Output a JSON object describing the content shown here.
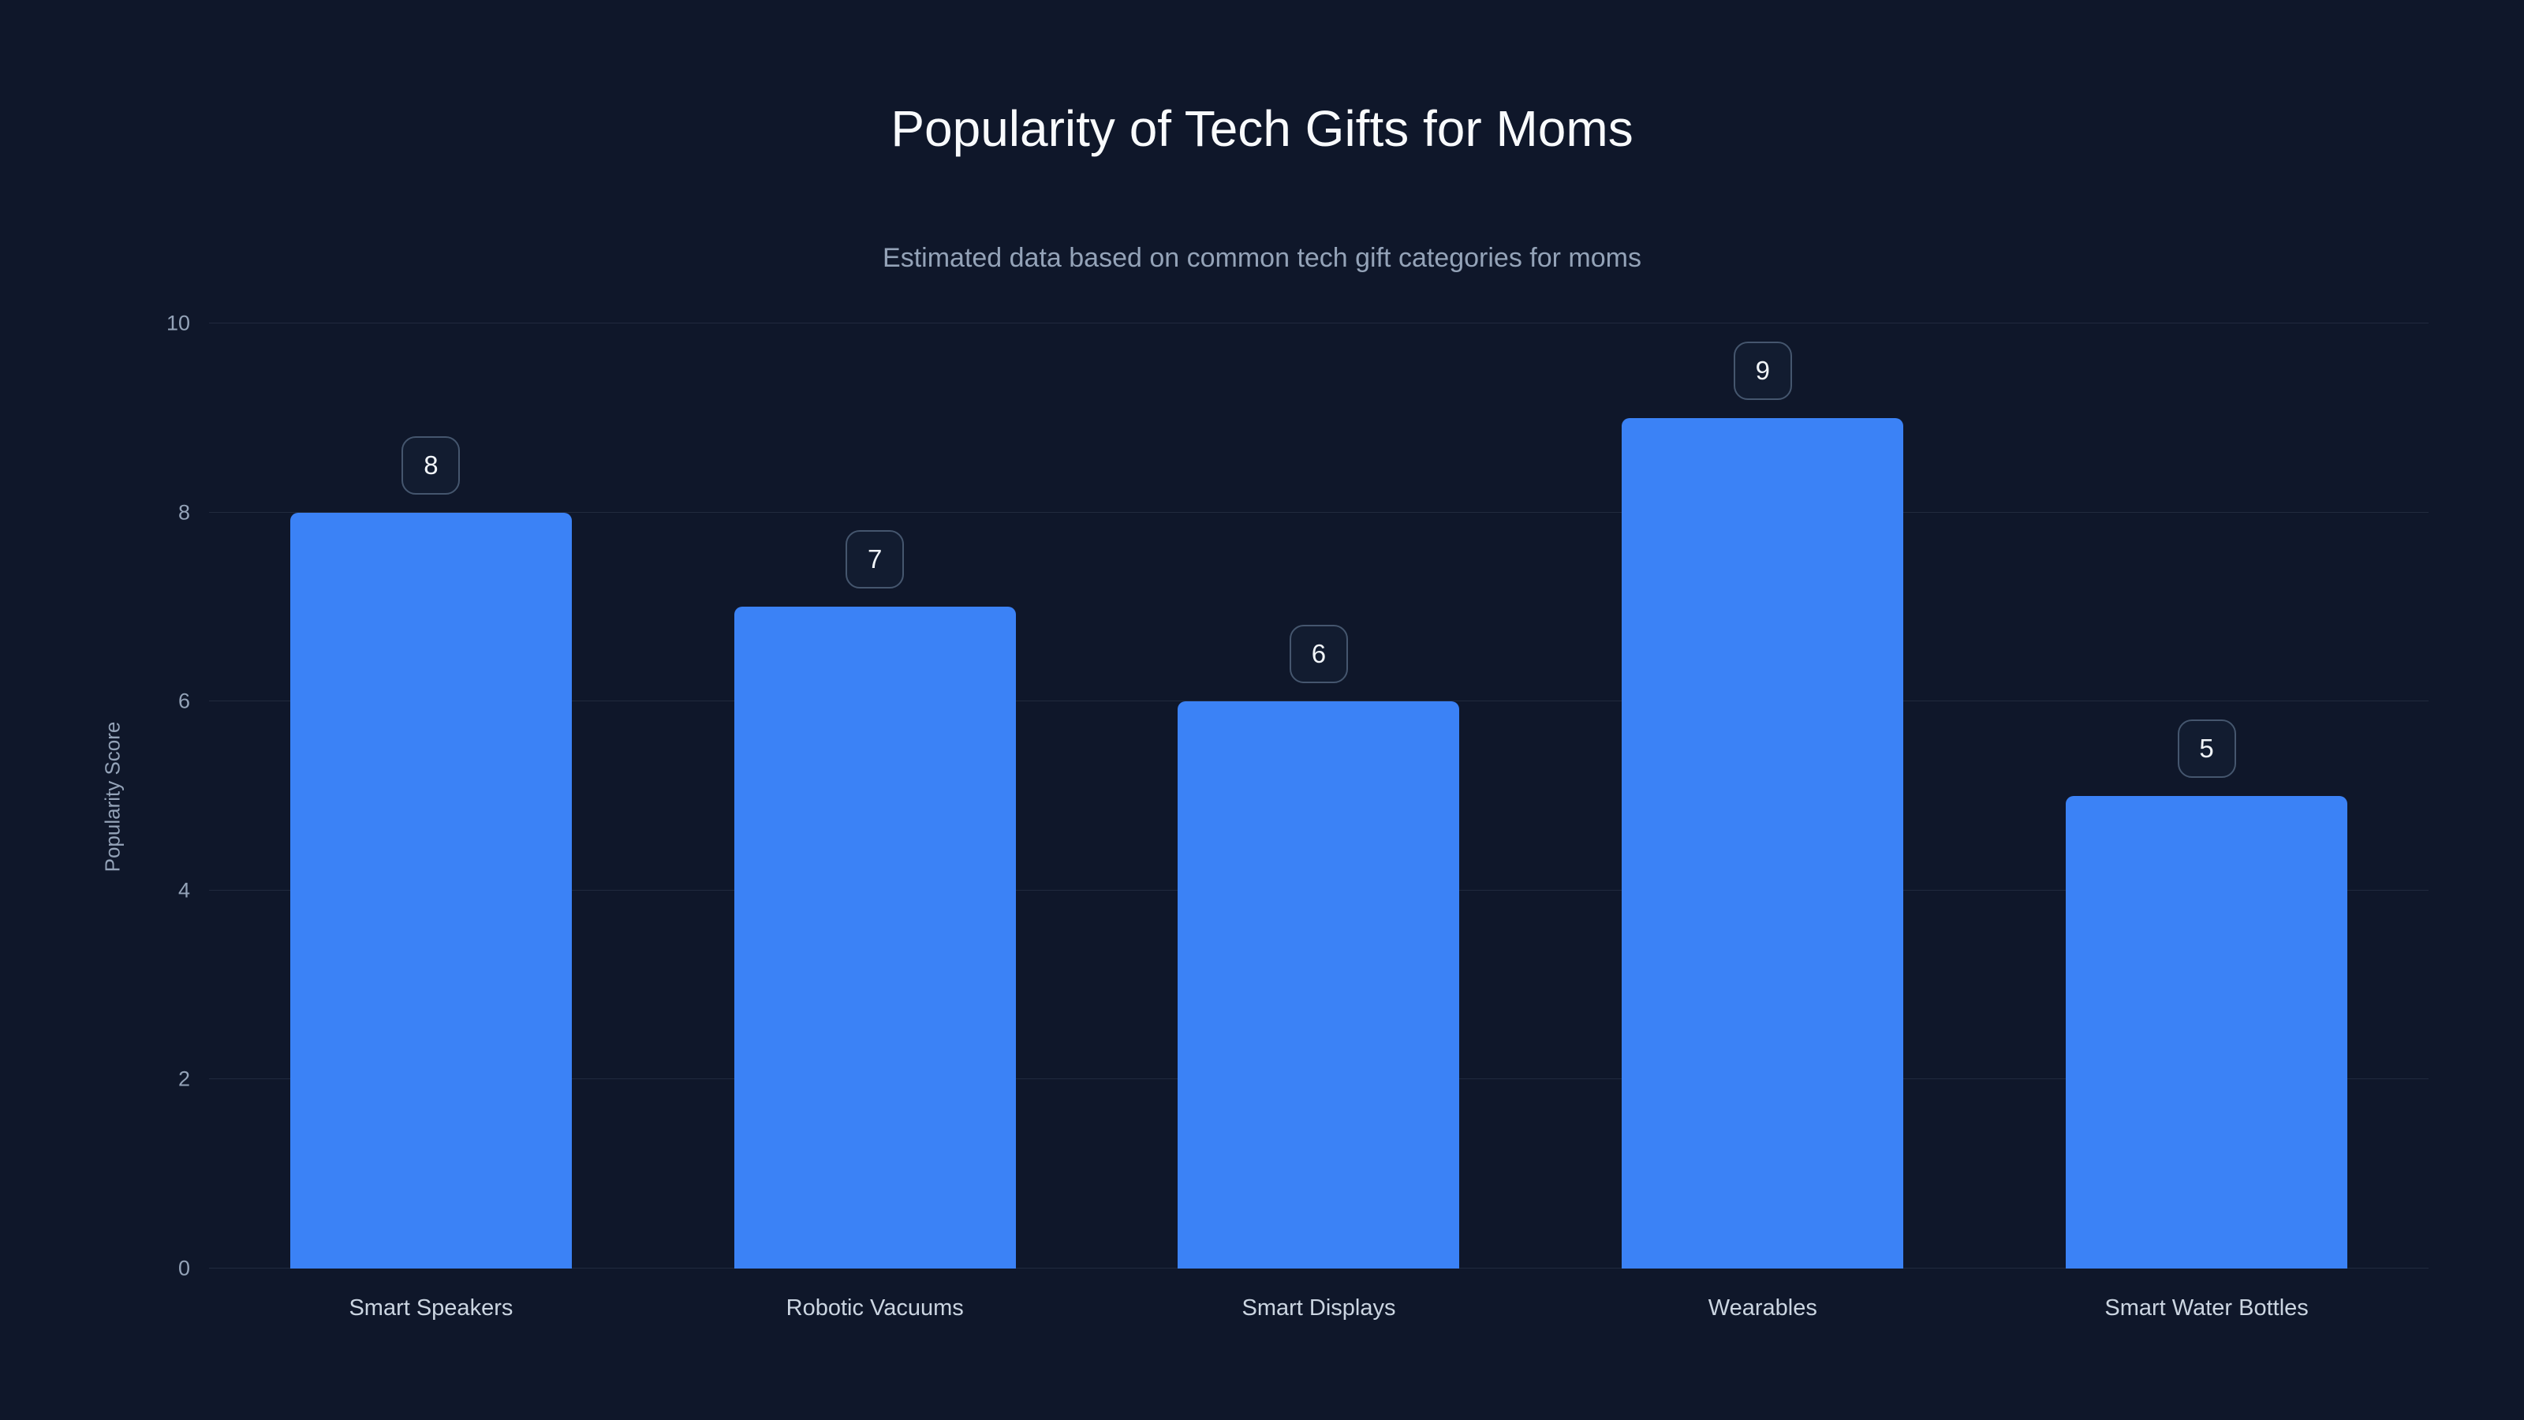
{
  "header": {
    "title": "Popularity of Tech Gifts for Moms",
    "subtitle": "Estimated data based on common tech gift categories for moms"
  },
  "chart_data": {
    "type": "bar",
    "title": "Popularity of Tech Gifts for Moms",
    "subtitle": "Estimated data based on common tech gift categories for moms",
    "categories": [
      "Smart Speakers",
      "Robotic Vacuums",
      "Smart Displays",
      "Wearables",
      "Smart Water Bottles"
    ],
    "values": [
      8,
      7,
      6,
      9,
      5
    ],
    "value_labels": [
      "8",
      "7",
      "6",
      "9",
      "5"
    ],
    "xlabel": "",
    "ylabel": "Popularity Score",
    "ylim": [
      0,
      10
    ],
    "yticks": [
      0,
      2,
      4,
      6,
      8,
      10
    ],
    "grid": true,
    "legend": false,
    "bar_color": "#3b82f6",
    "background_color": "#0f172a"
  }
}
